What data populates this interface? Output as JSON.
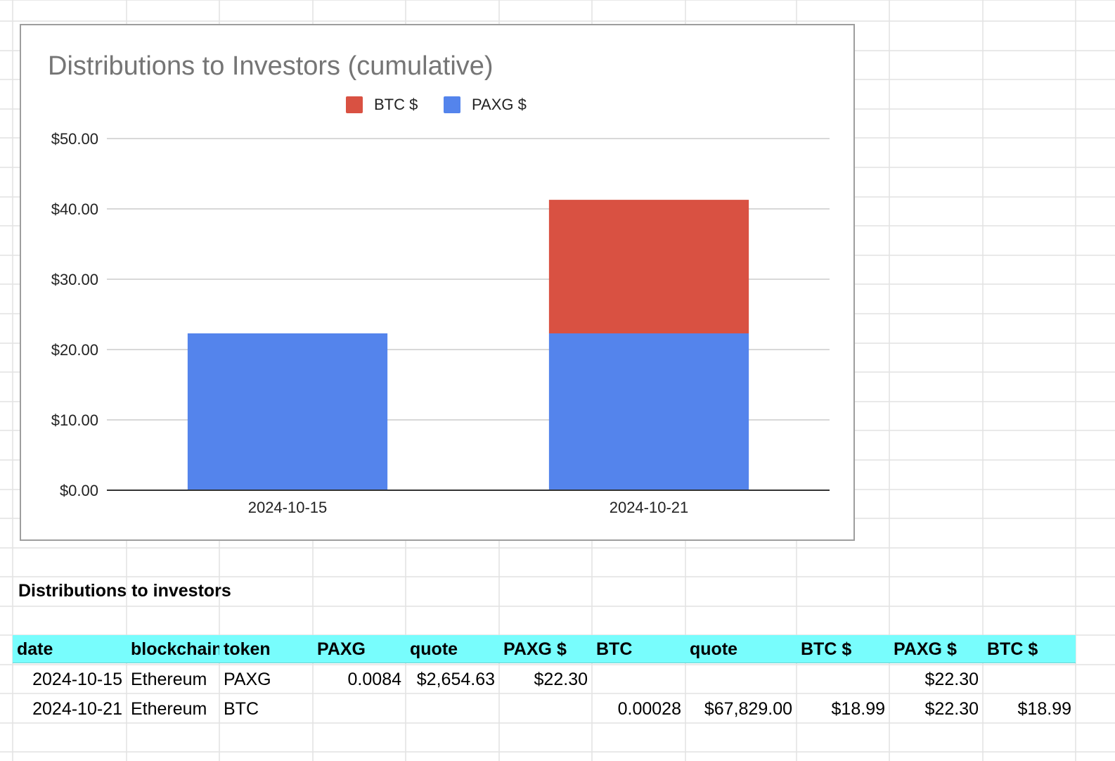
{
  "chart_data": {
    "type": "bar",
    "stacked": true,
    "title": "Distributions to Investors (cumulative)",
    "categories": [
      "2024-10-15",
      "2024-10-21"
    ],
    "series": [
      {
        "name": "PAXG $",
        "color": "#5484ec",
        "values": [
          22.3,
          22.3
        ]
      },
      {
        "name": "BTC $",
        "color": "#d95142",
        "values": [
          0,
          18.99
        ]
      }
    ],
    "legend_order": [
      "BTC $",
      "PAXG $"
    ],
    "legend_position": "top",
    "ylim": [
      0,
      50
    ],
    "yticks": [
      0,
      10,
      20,
      30,
      40,
      50
    ],
    "ytick_labels": [
      "$0.00",
      "$10.00",
      "$20.00",
      "$30.00",
      "$40.00",
      "$50.00"
    ],
    "grid": true
  },
  "section_title": "Distributions to investors",
  "table": {
    "headers": [
      "date",
      "blockchain",
      "token",
      "PAXG",
      "quote",
      "PAXG $",
      "BTC",
      "quote",
      "BTC $",
      "PAXG $",
      "BTC $"
    ],
    "rows": [
      [
        "2024-10-15",
        "Ethereum",
        "PAXG",
        "0.0084",
        "$2,654.63",
        "$22.30",
        "",
        "",
        "",
        "$22.30",
        ""
      ],
      [
        "2024-10-21",
        "Ethereum",
        "BTC",
        "",
        "",
        "",
        "0.00028",
        "$67,829.00",
        "$18.99",
        "$22.30",
        "$18.99"
      ]
    ]
  }
}
